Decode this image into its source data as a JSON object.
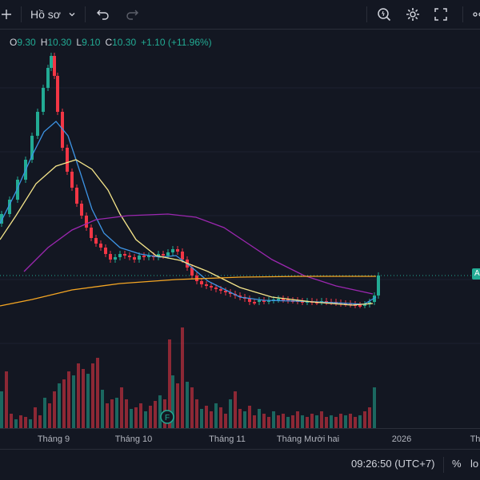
{
  "toolbar": {
    "profile_label": "Hồ sơ",
    "icons": [
      "crosshair-icon",
      "chevron-down-icon",
      "undo-icon",
      "redo-icon",
      "quick-search-icon",
      "settings-icon",
      "fullscreen-icon",
      "share-icon"
    ]
  },
  "legend": {
    "o_label": "O",
    "o_value": "9.30",
    "h_label": "H",
    "h_value": "10.30",
    "l_label": "L",
    "l_value": "9.10",
    "c_label": "C",
    "c_value": "10.30",
    "change": "+1.10 (+11.96%)"
  },
  "colors": {
    "up": "#22ab94",
    "down": "#f23645",
    "ma_blue": "#3d94e5",
    "ma_yellow": "#f5e58a",
    "ma_purple": "#9c27b0",
    "ma_orange": "#f5a623",
    "background": "#131722"
  },
  "x_axis": {
    "labels": [
      "Tháng 9",
      "Tháng 10",
      "Tháng 11",
      "Tháng Mười hai",
      "2026",
      "Th"
    ]
  },
  "price_tag": "A",
  "event_marker": "F",
  "bottom": {
    "time": "09:26:50 (UTC+7)",
    "percent": "%",
    "log": "lo"
  },
  "chart_data": {
    "type": "candlestick",
    "last_close": 10.3,
    "moving_averages": [
      "blue",
      "yellow",
      "purple",
      "orange"
    ]
  }
}
